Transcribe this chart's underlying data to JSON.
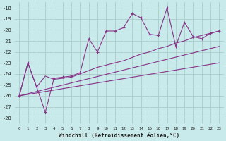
{
  "xlabel": "Windchill (Refroidissement éolien,°C)",
  "bg_color": "#c8eaea",
  "grid_color": "#b0d0d0",
  "line_color": "#883388",
  "xlim": [
    -0.5,
    23.5
  ],
  "ylim": [
    -28.5,
    -17.5
  ],
  "xticks": [
    0,
    1,
    2,
    3,
    4,
    5,
    6,
    7,
    8,
    9,
    10,
    11,
    12,
    13,
    14,
    15,
    16,
    17,
    18,
    19,
    20,
    21,
    22,
    23
  ],
  "yticks": [
    -28,
    -27,
    -26,
    -25,
    -24,
    -23,
    -22,
    -21,
    -20,
    -19,
    -18
  ],
  "series1_x": [
    0,
    1,
    2,
    3,
    4,
    5,
    6,
    7,
    8,
    9,
    10,
    11,
    12,
    13,
    14,
    15,
    16,
    17,
    18,
    19,
    20,
    21,
    22,
    23
  ],
  "series1_y": [
    -26.0,
    -23.0,
    -25.2,
    -27.5,
    -24.4,
    -24.3,
    -24.2,
    -23.9,
    -20.8,
    -22.0,
    -20.1,
    -20.1,
    -19.8,
    -18.5,
    -18.9,
    -20.4,
    -20.5,
    -18.0,
    -21.5,
    -19.3,
    -20.6,
    -20.8,
    -20.3,
    -20.1
  ],
  "series2_x": [
    0,
    23
  ],
  "series2_y": [
    -26.0,
    -21.5
  ],
  "series3_x": [
    0,
    23
  ],
  "series3_y": [
    -26.0,
    -23.0
  ],
  "series4_x": [
    0,
    1,
    2,
    3,
    4,
    5,
    6,
    7,
    8,
    9,
    10,
    11,
    12,
    13,
    14,
    15,
    16,
    17,
    18,
    19,
    20,
    21,
    22,
    23
  ],
  "series4_y": [
    -26.0,
    -23.0,
    -25.2,
    -24.2,
    -24.5,
    -24.4,
    -24.3,
    -24.0,
    -23.7,
    -23.4,
    -23.2,
    -23.0,
    -22.8,
    -22.5,
    -22.2,
    -22.0,
    -21.7,
    -21.5,
    -21.2,
    -21.0,
    -20.7,
    -20.5,
    -20.3,
    -20.1
  ]
}
